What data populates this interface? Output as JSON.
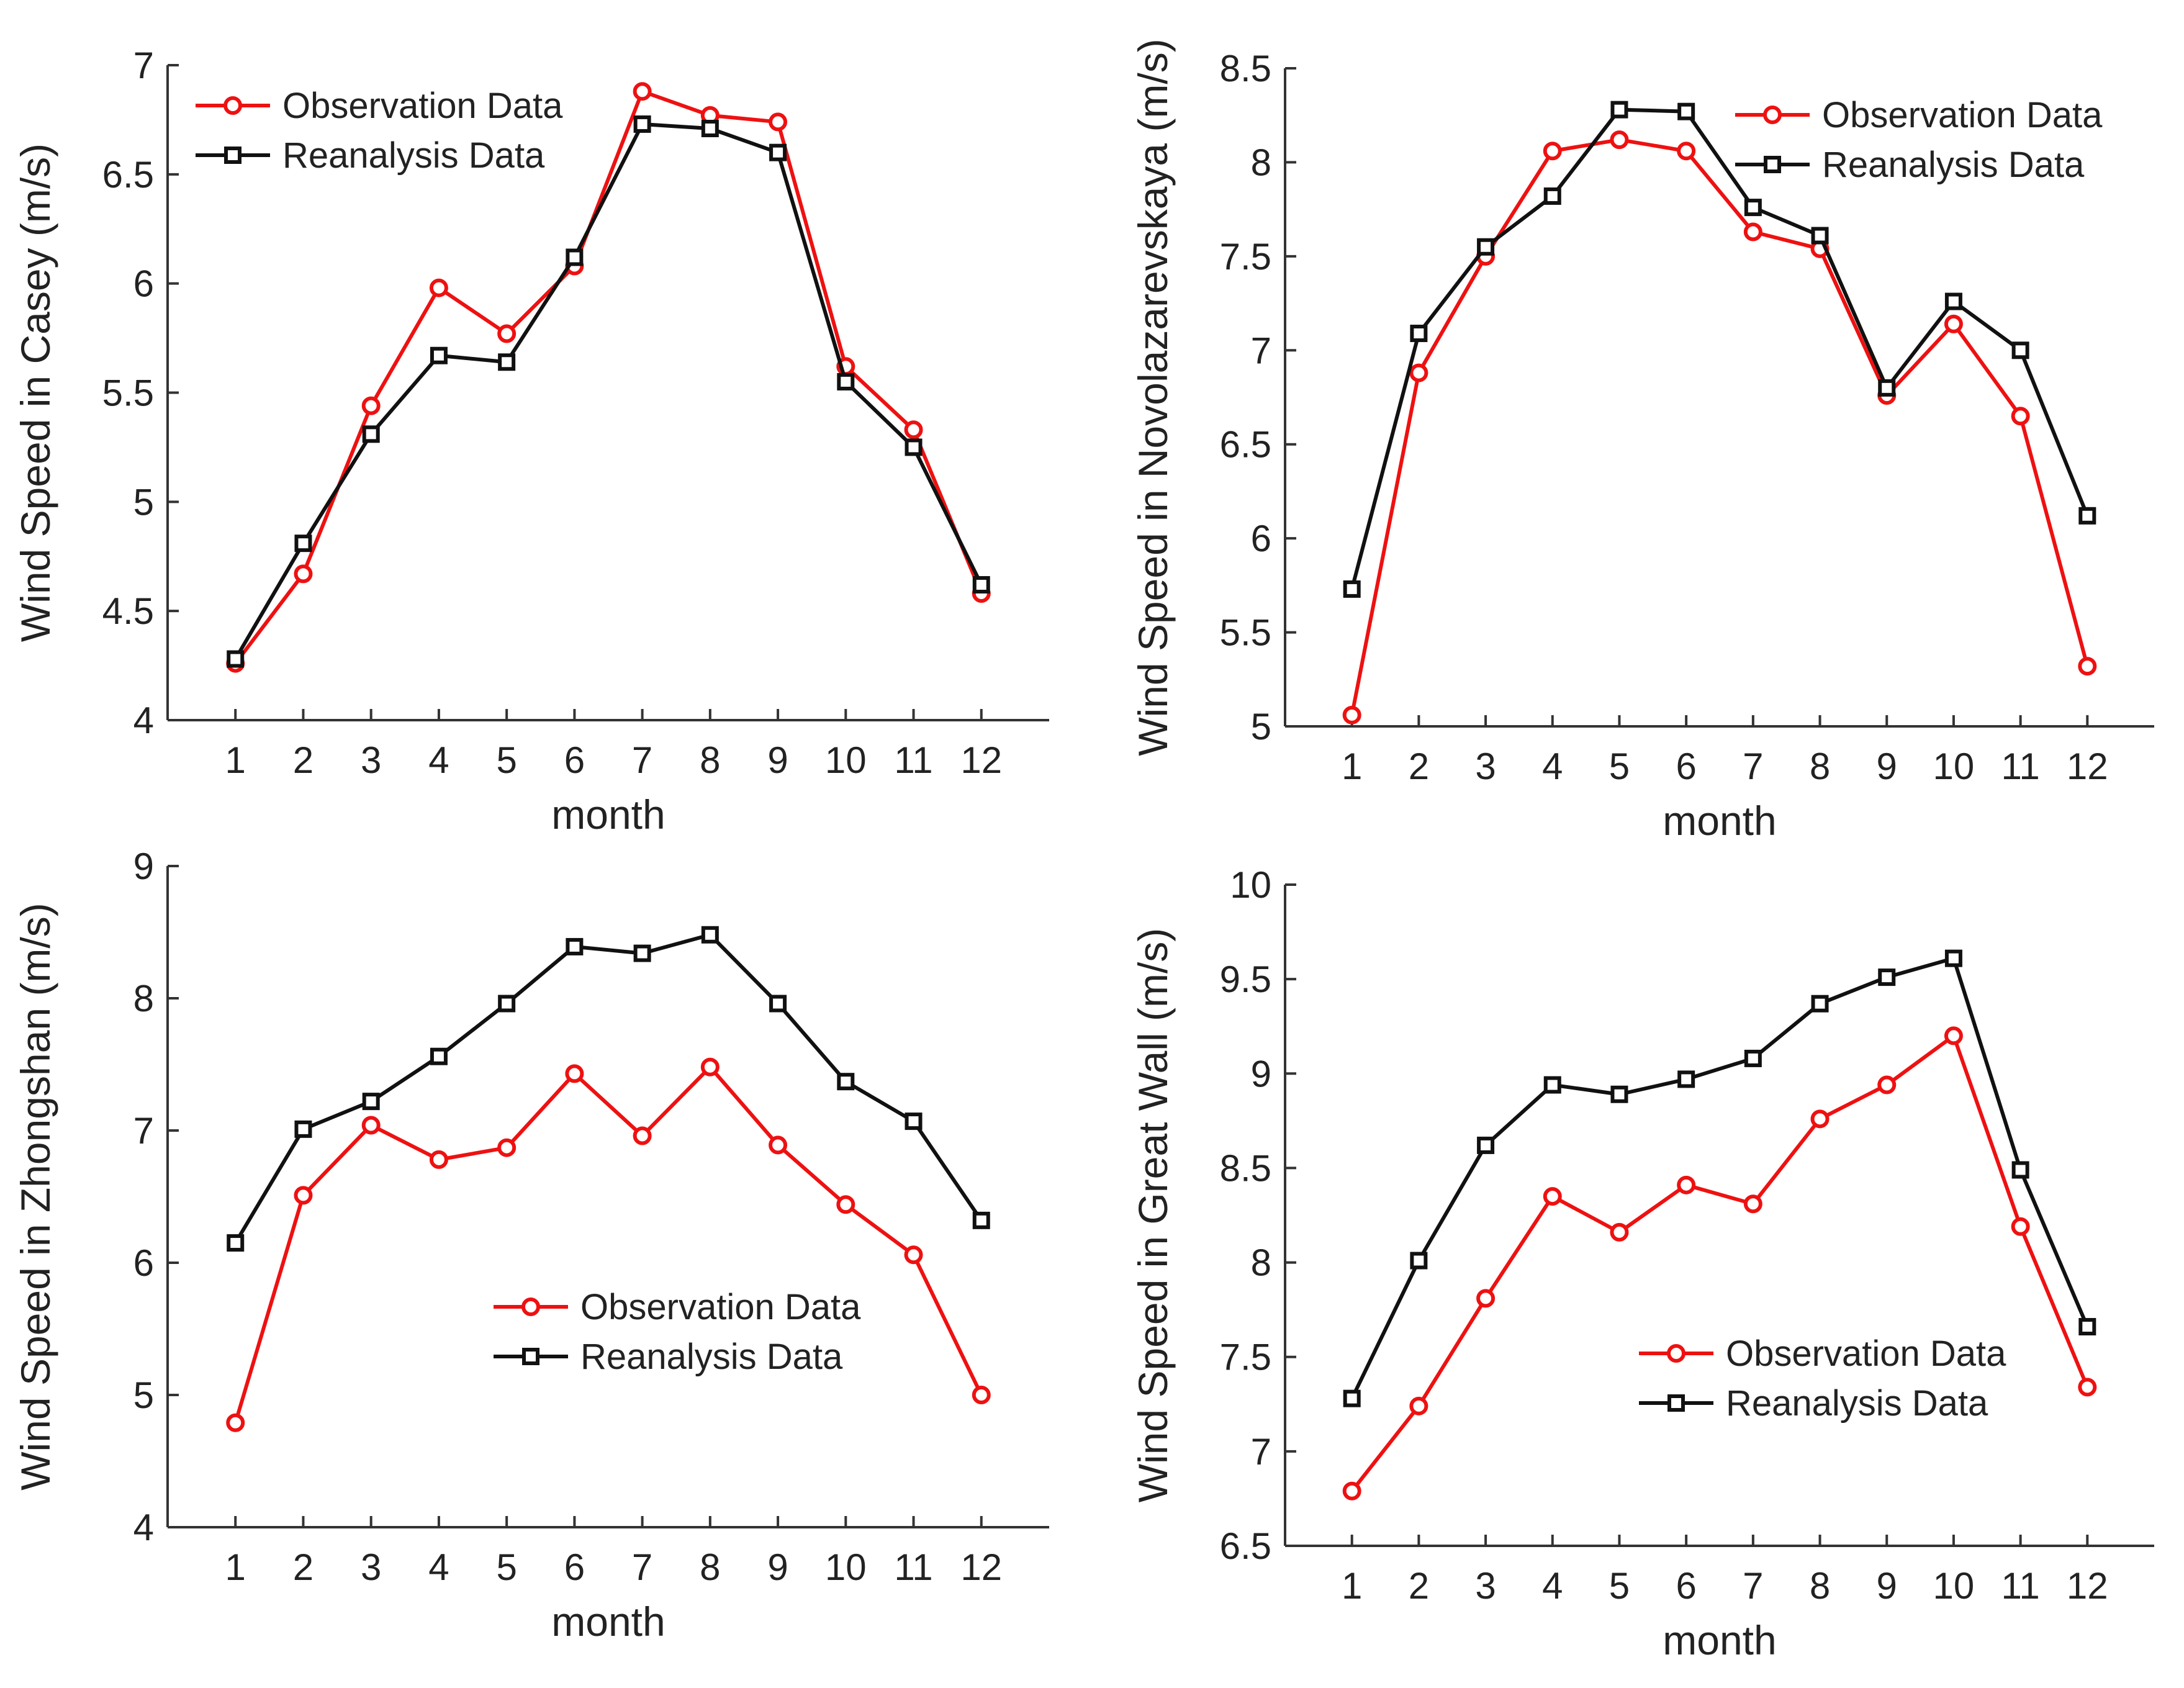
{
  "chart_data": [
    {
      "type": "line",
      "xlabel": "month",
      "ylabel": "Wind Speed in Casey (m/s)",
      "x": [
        1,
        2,
        3,
        4,
        5,
        6,
        7,
        8,
        9,
        10,
        11,
        12
      ],
      "xlim": [
        0,
        13
      ],
      "ylim": [
        4,
        7
      ],
      "yticks": [
        "4",
        "4.5",
        "5",
        "5.5",
        "6",
        "6.5",
        "7"
      ],
      "xticks": [
        "1",
        "2",
        "3",
        "4",
        "5",
        "6",
        "7",
        "8",
        "9",
        "10",
        "11",
        "12"
      ],
      "legend_position": "top-left",
      "series": [
        {
          "name": "Observation Data",
          "color": "#ee1111",
          "marker": "circle",
          "values": [
            4.26,
            4.67,
            5.44,
            5.98,
            5.77,
            6.08,
            6.88,
            6.77,
            6.74,
            5.62,
            5.33,
            4.58
          ]
        },
        {
          "name": "Reanalysis Data",
          "color": "#111111",
          "marker": "square",
          "values": [
            4.28,
            4.81,
            5.31,
            5.67,
            5.64,
            6.12,
            6.73,
            6.71,
            6.6,
            5.55,
            5.25,
            4.62
          ]
        }
      ]
    },
    {
      "type": "line",
      "xlabel": "month",
      "ylabel": "Wind Speed in Novolazarevskaya (m/s)",
      "x": [
        1,
        2,
        3,
        4,
        5,
        6,
        7,
        8,
        9,
        10,
        11,
        12
      ],
      "xlim": [
        0,
        13
      ],
      "ylim": [
        5,
        8.5
      ],
      "yticks": [
        "5",
        "5.5",
        "6",
        "6.5",
        "7",
        "7.5",
        "8",
        "8.5"
      ],
      "xticks": [
        "1",
        "2",
        "3",
        "4",
        "5",
        "6",
        "7",
        "8",
        "9",
        "10",
        "11",
        "12"
      ],
      "legend_position": "top-right",
      "series": [
        {
          "name": "Observation Data",
          "color": "#ee1111",
          "marker": "circle",
          "values": [
            5.06,
            6.88,
            7.5,
            8.06,
            8.12,
            8.06,
            7.63,
            7.54,
            6.76,
            7.14,
            6.65,
            5.32
          ]
        },
        {
          "name": "Reanalysis Data",
          "color": "#111111",
          "marker": "square",
          "values": [
            5.73,
            7.09,
            7.55,
            7.82,
            8.28,
            8.27,
            7.76,
            7.61,
            6.8,
            7.26,
            7.0,
            6.12
          ]
        }
      ]
    },
    {
      "type": "line",
      "xlabel": "month",
      "ylabel": "Wind Speed in Zhongshan (m/s)",
      "x": [
        1,
        2,
        3,
        4,
        5,
        6,
        7,
        8,
        9,
        10,
        11,
        12
      ],
      "xlim": [
        0,
        13
      ],
      "ylim": [
        4,
        9
      ],
      "yticks": [
        "4",
        "5",
        "6",
        "7",
        "8",
        "9"
      ],
      "xticks": [
        "1",
        "2",
        "3",
        "4",
        "5",
        "6",
        "7",
        "8",
        "9",
        "10",
        "11",
        "12"
      ],
      "legend_position": "bottom-right",
      "series": [
        {
          "name": "Observation Data",
          "color": "#ee1111",
          "marker": "circle",
          "values": [
            4.79,
            6.51,
            7.04,
            6.78,
            6.87,
            7.43,
            6.96,
            7.48,
            6.89,
            6.44,
            6.06,
            5.0
          ]
        },
        {
          "name": "Reanalysis Data",
          "color": "#111111",
          "marker": "square",
          "values": [
            6.15,
            7.01,
            7.22,
            7.56,
            7.96,
            8.39,
            8.34,
            8.48,
            7.96,
            7.37,
            7.07,
            6.32
          ]
        }
      ]
    },
    {
      "type": "line",
      "xlabel": "month",
      "ylabel": "Wind Speed in Great Wall (m/s)",
      "x": [
        1,
        2,
        3,
        4,
        5,
        6,
        7,
        8,
        9,
        10,
        11,
        12
      ],
      "xlim": [
        0,
        13
      ],
      "ylim": [
        6.5,
        10
      ],
      "yticks": [
        "6.5",
        "7",
        "7.5",
        "8",
        "8.5",
        "9",
        "9.5",
        "10"
      ],
      "xticks": [
        "1",
        "2",
        "3",
        "4",
        "5",
        "6",
        "7",
        "8",
        "9",
        "10",
        "11",
        "12"
      ],
      "legend_position": "bottom-right",
      "series": [
        {
          "name": "Observation Data",
          "color": "#ee1111",
          "marker": "circle",
          "values": [
            6.79,
            7.24,
            7.81,
            8.35,
            8.16,
            8.41,
            8.31,
            8.76,
            8.94,
            9.2,
            8.19,
            7.34
          ]
        },
        {
          "name": "Reanalysis Data",
          "color": "#111111",
          "marker": "square",
          "values": [
            7.28,
            8.01,
            8.62,
            8.94,
            8.89,
            8.97,
            9.08,
            9.37,
            9.51,
            9.61,
            8.49,
            7.66
          ]
        }
      ]
    }
  ]
}
